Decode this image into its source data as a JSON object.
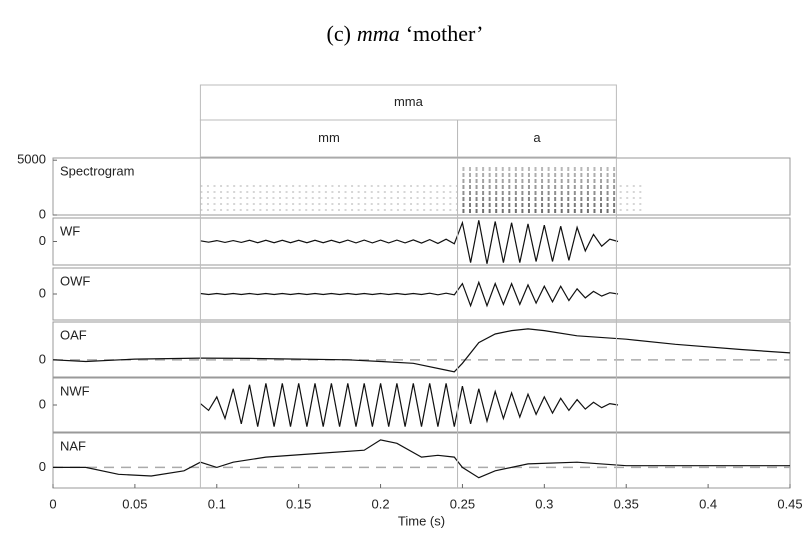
{
  "figure": {
    "title": {
      "prefix": "(c)",
      "word": "mma",
      "gloss": "‘mother’"
    }
  },
  "annotation_tiers": [
    [
      {
        "label": "mma",
        "start": 0.09,
        "end": 0.344
      }
    ],
    [
      {
        "label": "mm",
        "start": 0.09,
        "end": 0.247
      },
      {
        "label": "a",
        "start": 0.247,
        "end": 0.344
      }
    ]
  ],
  "chart_data": [
    {
      "type": "spectrogram",
      "label": "Spectrogram",
      "xlim": [
        0,
        0.45
      ],
      "ylim": [
        0,
        5200
      ],
      "yticks": [
        0,
        5000
      ]
    },
    {
      "type": "line",
      "label": "WF",
      "xlim": [
        0,
        0.45
      ],
      "ylim": [
        -1,
        1
      ],
      "yticks": [
        0
      ],
      "color": "#111",
      "x": [
        0.09,
        0.095,
        0.1,
        0.105,
        0.11,
        0.115,
        0.12,
        0.125,
        0.13,
        0.135,
        0.14,
        0.145,
        0.15,
        0.155,
        0.16,
        0.165,
        0.17,
        0.175,
        0.18,
        0.185,
        0.19,
        0.195,
        0.2,
        0.205,
        0.21,
        0.215,
        0.22,
        0.225,
        0.23,
        0.235,
        0.24,
        0.245,
        0.25,
        0.255,
        0.26,
        0.265,
        0.27,
        0.275,
        0.28,
        0.285,
        0.29,
        0.295,
        0.3,
        0.305,
        0.31,
        0.315,
        0.32,
        0.325,
        0.33,
        0.335,
        0.34,
        0.345
      ],
      "values": [
        0.03,
        -0.03,
        0.04,
        -0.04,
        0.04,
        -0.04,
        0.05,
        -0.05,
        0.05,
        -0.05,
        0.05,
        -0.05,
        0.05,
        -0.05,
        0.05,
        -0.05,
        0.05,
        -0.05,
        0.06,
        -0.06,
        0.06,
        -0.06,
        0.06,
        -0.06,
        0.06,
        -0.06,
        0.07,
        -0.07,
        0.08,
        -0.08,
        0.1,
        -0.1,
        0.8,
        -0.9,
        0.9,
        -0.95,
        0.85,
        -0.9,
        0.8,
        -0.9,
        0.75,
        -0.85,
        0.7,
        -0.85,
        0.65,
        -0.8,
        0.6,
        -0.4,
        0.3,
        -0.2,
        0.1,
        0
      ]
    },
    {
      "type": "line",
      "label": "OWF",
      "xlim": [
        0,
        0.45
      ],
      "ylim": [
        -1,
        1
      ],
      "yticks": [
        0
      ],
      "color": "#111",
      "x": [
        0.09,
        0.095,
        0.1,
        0.105,
        0.11,
        0.115,
        0.12,
        0.125,
        0.13,
        0.135,
        0.14,
        0.145,
        0.15,
        0.155,
        0.16,
        0.165,
        0.17,
        0.175,
        0.18,
        0.185,
        0.19,
        0.195,
        0.2,
        0.205,
        0.21,
        0.215,
        0.22,
        0.225,
        0.23,
        0.235,
        0.24,
        0.245,
        0.25,
        0.255,
        0.26,
        0.265,
        0.27,
        0.275,
        0.28,
        0.285,
        0.29,
        0.295,
        0.3,
        0.305,
        0.31,
        0.315,
        0.32,
        0.325,
        0.33,
        0.335,
        0.34,
        0.345
      ],
      "values": [
        0.02,
        -0.02,
        0.02,
        -0.02,
        0.02,
        -0.02,
        0.02,
        -0.02,
        0.02,
        -0.02,
        0.02,
        -0.02,
        0.02,
        -0.02,
        0.02,
        -0.02,
        0.02,
        -0.02,
        0.02,
        -0.02,
        0.02,
        -0.02,
        0.02,
        -0.02,
        0.02,
        -0.02,
        0.02,
        -0.02,
        0.03,
        -0.03,
        0.03,
        -0.03,
        0.4,
        -0.45,
        0.45,
        -0.45,
        0.4,
        -0.4,
        0.4,
        -0.4,
        0.35,
        -0.35,
        0.3,
        -0.3,
        0.3,
        -0.25,
        0.2,
        -0.15,
        0.1,
        -0.08,
        0.05,
        0
      ]
    },
    {
      "type": "line",
      "label": "OAF",
      "xlim": [
        0,
        0.45
      ],
      "ylim": [
        -0.5,
        1.1
      ],
      "yticks": [
        0
      ],
      "color": "#111",
      "zero_line": true,
      "x": [
        0,
        0.02,
        0.05,
        0.09,
        0.12,
        0.15,
        0.18,
        0.2,
        0.22,
        0.24,
        0.245,
        0.25,
        0.26,
        0.27,
        0.28,
        0.29,
        0.3,
        0.32,
        0.35,
        0.38,
        0.42,
        0.45
      ],
      "values": [
        0,
        -0.05,
        0.02,
        0.05,
        0.04,
        0.02,
        0,
        -0.05,
        -0.1,
        -0.3,
        -0.35,
        -0.1,
        0.5,
        0.75,
        0.85,
        0.9,
        0.85,
        0.7,
        0.6,
        0.45,
        0.3,
        0.2
      ]
    },
    {
      "type": "line",
      "label": "NWF",
      "xlim": [
        0,
        0.45
      ],
      "ylim": [
        -1,
        1
      ],
      "yticks": [
        0
      ],
      "color": "#111",
      "x": [
        0.09,
        0.095,
        0.1,
        0.105,
        0.11,
        0.115,
        0.12,
        0.125,
        0.13,
        0.135,
        0.14,
        0.145,
        0.15,
        0.155,
        0.16,
        0.165,
        0.17,
        0.175,
        0.18,
        0.185,
        0.19,
        0.195,
        0.2,
        0.205,
        0.21,
        0.215,
        0.22,
        0.225,
        0.23,
        0.235,
        0.24,
        0.245,
        0.25,
        0.255,
        0.26,
        0.265,
        0.27,
        0.275,
        0.28,
        0.285,
        0.29,
        0.295,
        0.3,
        0.305,
        0.31,
        0.315,
        0.32,
        0.325,
        0.33,
        0.335,
        0.34,
        0.345
      ],
      "values": [
        0.05,
        -0.2,
        0.3,
        -0.5,
        0.6,
        -0.7,
        0.75,
        -0.8,
        0.8,
        -0.8,
        0.8,
        -0.8,
        0.8,
        -0.8,
        0.8,
        -0.8,
        0.8,
        -0.8,
        0.8,
        -0.8,
        0.8,
        -0.8,
        0.8,
        -0.8,
        0.8,
        -0.8,
        0.8,
        -0.8,
        0.8,
        -0.8,
        0.8,
        -0.8,
        0.7,
        -0.7,
        0.6,
        -0.6,
        0.5,
        -0.5,
        0.45,
        -0.45,
        0.4,
        -0.35,
        0.3,
        -0.3,
        0.25,
        -0.2,
        0.2,
        -0.15,
        0.1,
        -0.1,
        0.05,
        0
      ]
    },
    {
      "type": "line",
      "label": "NAF",
      "xlim": [
        0,
        0.45
      ],
      "ylim": [
        -0.6,
        1.0
      ],
      "yticks": [
        0
      ],
      "color": "#111",
      "zero_line": true,
      "x": [
        0,
        0.02,
        0.04,
        0.06,
        0.08,
        0.09,
        0.1,
        0.11,
        0.13,
        0.16,
        0.19,
        0.2,
        0.21,
        0.225,
        0.235,
        0.245,
        0.25,
        0.26,
        0.27,
        0.29,
        0.32,
        0.35,
        0.4,
        0.45
      ],
      "values": [
        0,
        0,
        -0.2,
        -0.25,
        -0.1,
        0.15,
        0,
        0.15,
        0.3,
        0.4,
        0.5,
        0.8,
        0.7,
        0.3,
        0.35,
        0.3,
        0,
        -0.3,
        -0.1,
        0.1,
        0.15,
        0.05,
        0.05,
        0.05
      ],
      "xticks": [
        0,
        0.05,
        0.1,
        0.15,
        0.2,
        0.25,
        0.3,
        0.35,
        0.4,
        0.45
      ],
      "xlabel": "Time (s)"
    }
  ]
}
